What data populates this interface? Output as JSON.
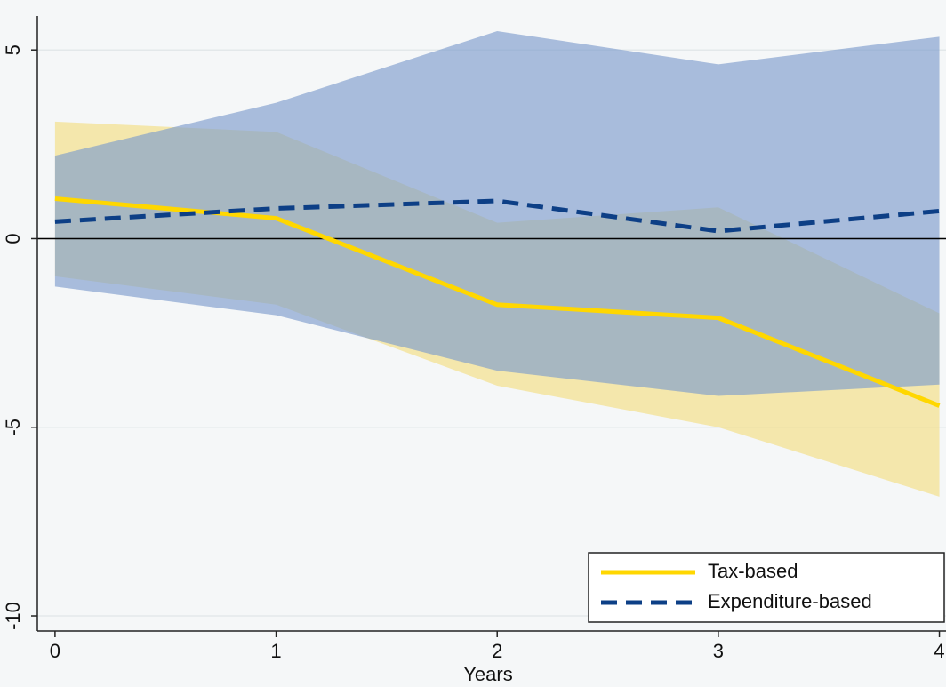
{
  "chart_data": {
    "type": "line",
    "x_label": "Years",
    "x": [
      0,
      1,
      2,
      3,
      4
    ],
    "xlim": [
      -0.08,
      4.03
    ],
    "xticks": [
      0,
      1,
      2,
      3,
      4
    ],
    "ylim": [
      -10.4,
      5.9
    ],
    "yticks": [
      -10,
      -5,
      0,
      5
    ],
    "grid": true,
    "reference_line": 0,
    "legend": "lower right",
    "series": [
      {
        "name": "Tax-based",
        "color": "#ffd700",
        "band_color": "#f3dc7a",
        "style": "solid",
        "values": [
          1.06,
          0.54,
          -1.75,
          -2.1,
          -4.43
        ],
        "lower": [
          -1.0,
          -1.75,
          -3.9,
          -5.0,
          -6.84
        ],
        "upper": [
          3.1,
          2.83,
          0.42,
          0.83,
          -1.98
        ]
      },
      {
        "name": "Expenditure-based",
        "color": "#0d3f86",
        "band_color": "#7e9dcc",
        "style": "dash",
        "values": [
          0.45,
          0.8,
          1.0,
          0.2,
          0.73
        ],
        "lower": [
          -1.27,
          -2.03,
          -3.5,
          -4.17,
          -3.87
        ],
        "upper": [
          2.2,
          3.6,
          5.5,
          4.62,
          5.35
        ]
      }
    ]
  }
}
